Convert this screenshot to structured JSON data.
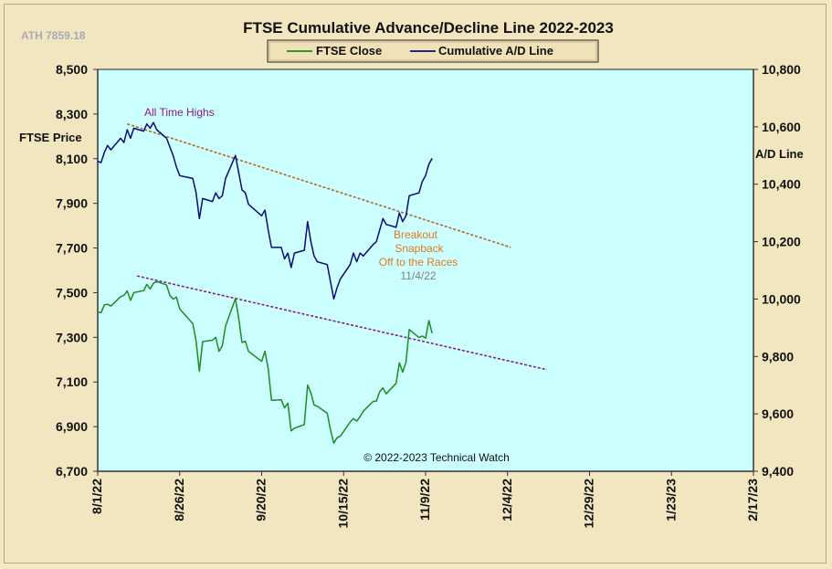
{
  "chart_data": {
    "type": "line",
    "title": "FTSE Cumulative  Advance/Decline  Line  2022-2023",
    "corner_note": "ATH 7859.18",
    "left_axis": {
      "label": "FTSE Price",
      "range": [
        6700,
        8500
      ],
      "ticks": [
        "8,500",
        "8,300",
        "8,100",
        "7,900",
        "7,700",
        "7,500",
        "7,300",
        "7,100",
        "6,900",
        "6,700"
      ]
    },
    "right_axis": {
      "label": "A/D Line",
      "range": [
        9400,
        10800
      ],
      "ticks": [
        "10,800",
        "10,600",
        "10,400",
        "10,200",
        "10,000",
        "9,800",
        "9,600",
        "9,400"
      ]
    },
    "x_axis": {
      "range": [
        "2022-08-01",
        "2023-02-17"
      ],
      "ticks": [
        "8/1/22",
        "8/26/22",
        "9/20/22",
        "10/15/22",
        "11/9/22",
        "12/4/22",
        "12/29/22",
        "1/23/23",
        "2/17/23"
      ]
    },
    "grid": false,
    "legend_position": "top-center",
    "plot_background": "#ccffff",
    "series": [
      {
        "name": "FTSE Close",
        "axis": "left",
        "color": "#1e8c1e",
        "points": [
          [
            "2022-08-01",
            7414
          ],
          [
            "2022-08-02",
            7410
          ],
          [
            "2022-08-03",
            7445
          ],
          [
            "2022-08-04",
            7448
          ],
          [
            "2022-08-05",
            7440
          ],
          [
            "2022-08-08",
            7482
          ],
          [
            "2022-08-09",
            7488
          ],
          [
            "2022-08-10",
            7508
          ],
          [
            "2022-08-11",
            7466
          ],
          [
            "2022-08-12",
            7500
          ],
          [
            "2022-08-15",
            7509
          ],
          [
            "2022-08-16",
            7537
          ],
          [
            "2022-08-17",
            7516
          ],
          [
            "2022-08-18",
            7542
          ],
          [
            "2022-08-19",
            7550
          ],
          [
            "2022-08-22",
            7534
          ],
          [
            "2022-08-23",
            7488
          ],
          [
            "2022-08-24",
            7471
          ],
          [
            "2022-08-25",
            7480
          ],
          [
            "2022-08-26",
            7427
          ],
          [
            "2022-08-30",
            7361
          ],
          [
            "2022-08-31",
            7284
          ],
          [
            "2022-09-01",
            7148
          ],
          [
            "2022-09-02",
            7281
          ],
          [
            "2022-09-05",
            7287
          ],
          [
            "2022-09-06",
            7300
          ],
          [
            "2022-09-07",
            7237
          ],
          [
            "2022-09-08",
            7262
          ],
          [
            "2022-09-09",
            7351
          ],
          [
            "2022-09-12",
            7473
          ],
          [
            "2022-09-13",
            7385
          ],
          [
            "2022-09-14",
            7277
          ],
          [
            "2022-09-15",
            7282
          ],
          [
            "2022-09-16",
            7237
          ],
          [
            "2022-09-20",
            7192
          ],
          [
            "2022-09-21",
            7238
          ],
          [
            "2022-09-22",
            7159
          ],
          [
            "2022-09-23",
            7018
          ],
          [
            "2022-09-26",
            7020
          ],
          [
            "2022-09-27",
            6984
          ],
          [
            "2022-09-28",
            7005
          ],
          [
            "2022-09-29",
            6881
          ],
          [
            "2022-09-30",
            6893
          ],
          [
            "2022-10-03",
            6909
          ],
          [
            "2022-10-04",
            7086
          ],
          [
            "2022-10-05",
            7052
          ],
          [
            "2022-10-06",
            6997
          ],
          [
            "2022-10-07",
            6991
          ],
          [
            "2022-10-10",
            6960
          ],
          [
            "2022-10-11",
            6885
          ],
          [
            "2022-10-12",
            6826
          ],
          [
            "2022-10-13",
            6850
          ],
          [
            "2022-10-14",
            6858
          ],
          [
            "2022-10-17",
            6920
          ],
          [
            "2022-10-18",
            6936
          ],
          [
            "2022-10-19",
            6925
          ],
          [
            "2022-10-20",
            6944
          ],
          [
            "2022-10-21",
            6969
          ],
          [
            "2022-10-24",
            7013
          ],
          [
            "2022-10-25",
            7014
          ],
          [
            "2022-10-26",
            7056
          ],
          [
            "2022-10-27",
            7073
          ],
          [
            "2022-10-28",
            7047
          ],
          [
            "2022-10-31",
            7094
          ],
          [
            "2022-11-01",
            7186
          ],
          [
            "2022-11-02",
            7144
          ],
          [
            "2022-11-03",
            7188
          ],
          [
            "2022-11-04",
            7335
          ],
          [
            "2022-11-07",
            7299
          ],
          [
            "2022-11-08",
            7306
          ],
          [
            "2022-11-09",
            7296
          ],
          [
            "2022-11-10",
            7375
          ],
          [
            "2022-11-11",
            7318
          ]
        ]
      },
      {
        "name": "Cumulative A/D Line",
        "axis": "right",
        "color": "#0a0a78",
        "points": [
          [
            "2022-08-01",
            10480
          ],
          [
            "2022-08-02",
            10475
          ],
          [
            "2022-08-03",
            10510
          ],
          [
            "2022-08-04",
            10535
          ],
          [
            "2022-08-05",
            10520
          ],
          [
            "2022-08-08",
            10560
          ],
          [
            "2022-08-09",
            10545
          ],
          [
            "2022-08-10",
            10590
          ],
          [
            "2022-08-11",
            10560
          ],
          [
            "2022-08-12",
            10595
          ],
          [
            "2022-08-15",
            10585
          ],
          [
            "2022-08-16",
            10610
          ],
          [
            "2022-08-17",
            10595
          ],
          [
            "2022-08-18",
            10615
          ],
          [
            "2022-08-19",
            10590
          ],
          [
            "2022-08-22",
            10560
          ],
          [
            "2022-08-23",
            10530
          ],
          [
            "2022-08-24",
            10500
          ],
          [
            "2022-08-25",
            10460
          ],
          [
            "2022-08-26",
            10430
          ],
          [
            "2022-08-30",
            10420
          ],
          [
            "2022-08-31",
            10370
          ],
          [
            "2022-09-01",
            10280
          ],
          [
            "2022-09-02",
            10350
          ],
          [
            "2022-09-05",
            10340
          ],
          [
            "2022-09-06",
            10370
          ],
          [
            "2022-09-07",
            10350
          ],
          [
            "2022-09-08",
            10360
          ],
          [
            "2022-09-09",
            10420
          ],
          [
            "2022-09-12",
            10500
          ],
          [
            "2022-09-13",
            10440
          ],
          [
            "2022-09-14",
            10380
          ],
          [
            "2022-09-15",
            10370
          ],
          [
            "2022-09-16",
            10330
          ],
          [
            "2022-09-20",
            10290
          ],
          [
            "2022-09-21",
            10310
          ],
          [
            "2022-09-22",
            10240
          ],
          [
            "2022-09-23",
            10180
          ],
          [
            "2022-09-26",
            10180
          ],
          [
            "2022-09-27",
            10140
          ],
          [
            "2022-09-28",
            10160
          ],
          [
            "2022-09-29",
            10110
          ],
          [
            "2022-09-30",
            10160
          ],
          [
            "2022-10-03",
            10170
          ],
          [
            "2022-10-04",
            10270
          ],
          [
            "2022-10-05",
            10200
          ],
          [
            "2022-10-06",
            10150
          ],
          [
            "2022-10-07",
            10130
          ],
          [
            "2022-10-10",
            10120
          ],
          [
            "2022-10-11",
            10060
          ],
          [
            "2022-10-12",
            10000
          ],
          [
            "2022-10-13",
            10040
          ],
          [
            "2022-10-14",
            10070
          ],
          [
            "2022-10-17",
            10120
          ],
          [
            "2022-10-18",
            10160
          ],
          [
            "2022-10-19",
            10130
          ],
          [
            "2022-10-20",
            10160
          ],
          [
            "2022-10-21",
            10150
          ],
          [
            "2022-10-24",
            10190
          ],
          [
            "2022-10-25",
            10200
          ],
          [
            "2022-10-26",
            10240
          ],
          [
            "2022-10-27",
            10280
          ],
          [
            "2022-10-28",
            10260
          ],
          [
            "2022-10-31",
            10250
          ],
          [
            "2022-11-01",
            10300
          ],
          [
            "2022-11-02",
            10270
          ],
          [
            "2022-11-03",
            10290
          ],
          [
            "2022-11-04",
            10360
          ],
          [
            "2022-11-07",
            10370
          ],
          [
            "2022-11-08",
            10410
          ],
          [
            "2022-11-09",
            10430
          ],
          [
            "2022-11-10",
            10470
          ],
          [
            "2022-11-11",
            10490
          ]
        ]
      }
    ],
    "trendlines": [
      {
        "axis": "right",
        "color": "#b5651d",
        "from": [
          "2022-08-10",
          10610
        ],
        "to": [
          "2022-12-05",
          10180
        ]
      },
      {
        "axis": "left",
        "color": "#8b1a8b",
        "from": [
          "2022-08-13",
          7575
        ],
        "to": [
          "2022-12-16",
          7155
        ]
      }
    ],
    "annotations": [
      {
        "text": "All Time Highs",
        "color": "#8b1a8b"
      },
      {
        "text": "Breakout",
        "color": "#e07820"
      },
      {
        "text": "Snapback",
        "color": "#e07820"
      },
      {
        "text": "Off to the Races",
        "color": "#e07820"
      },
      {
        "text": "11/4/22",
        "color": "#808080"
      },
      {
        "text": "© 2022-2023  Technical Watch",
        "color": "#111111"
      }
    ]
  }
}
